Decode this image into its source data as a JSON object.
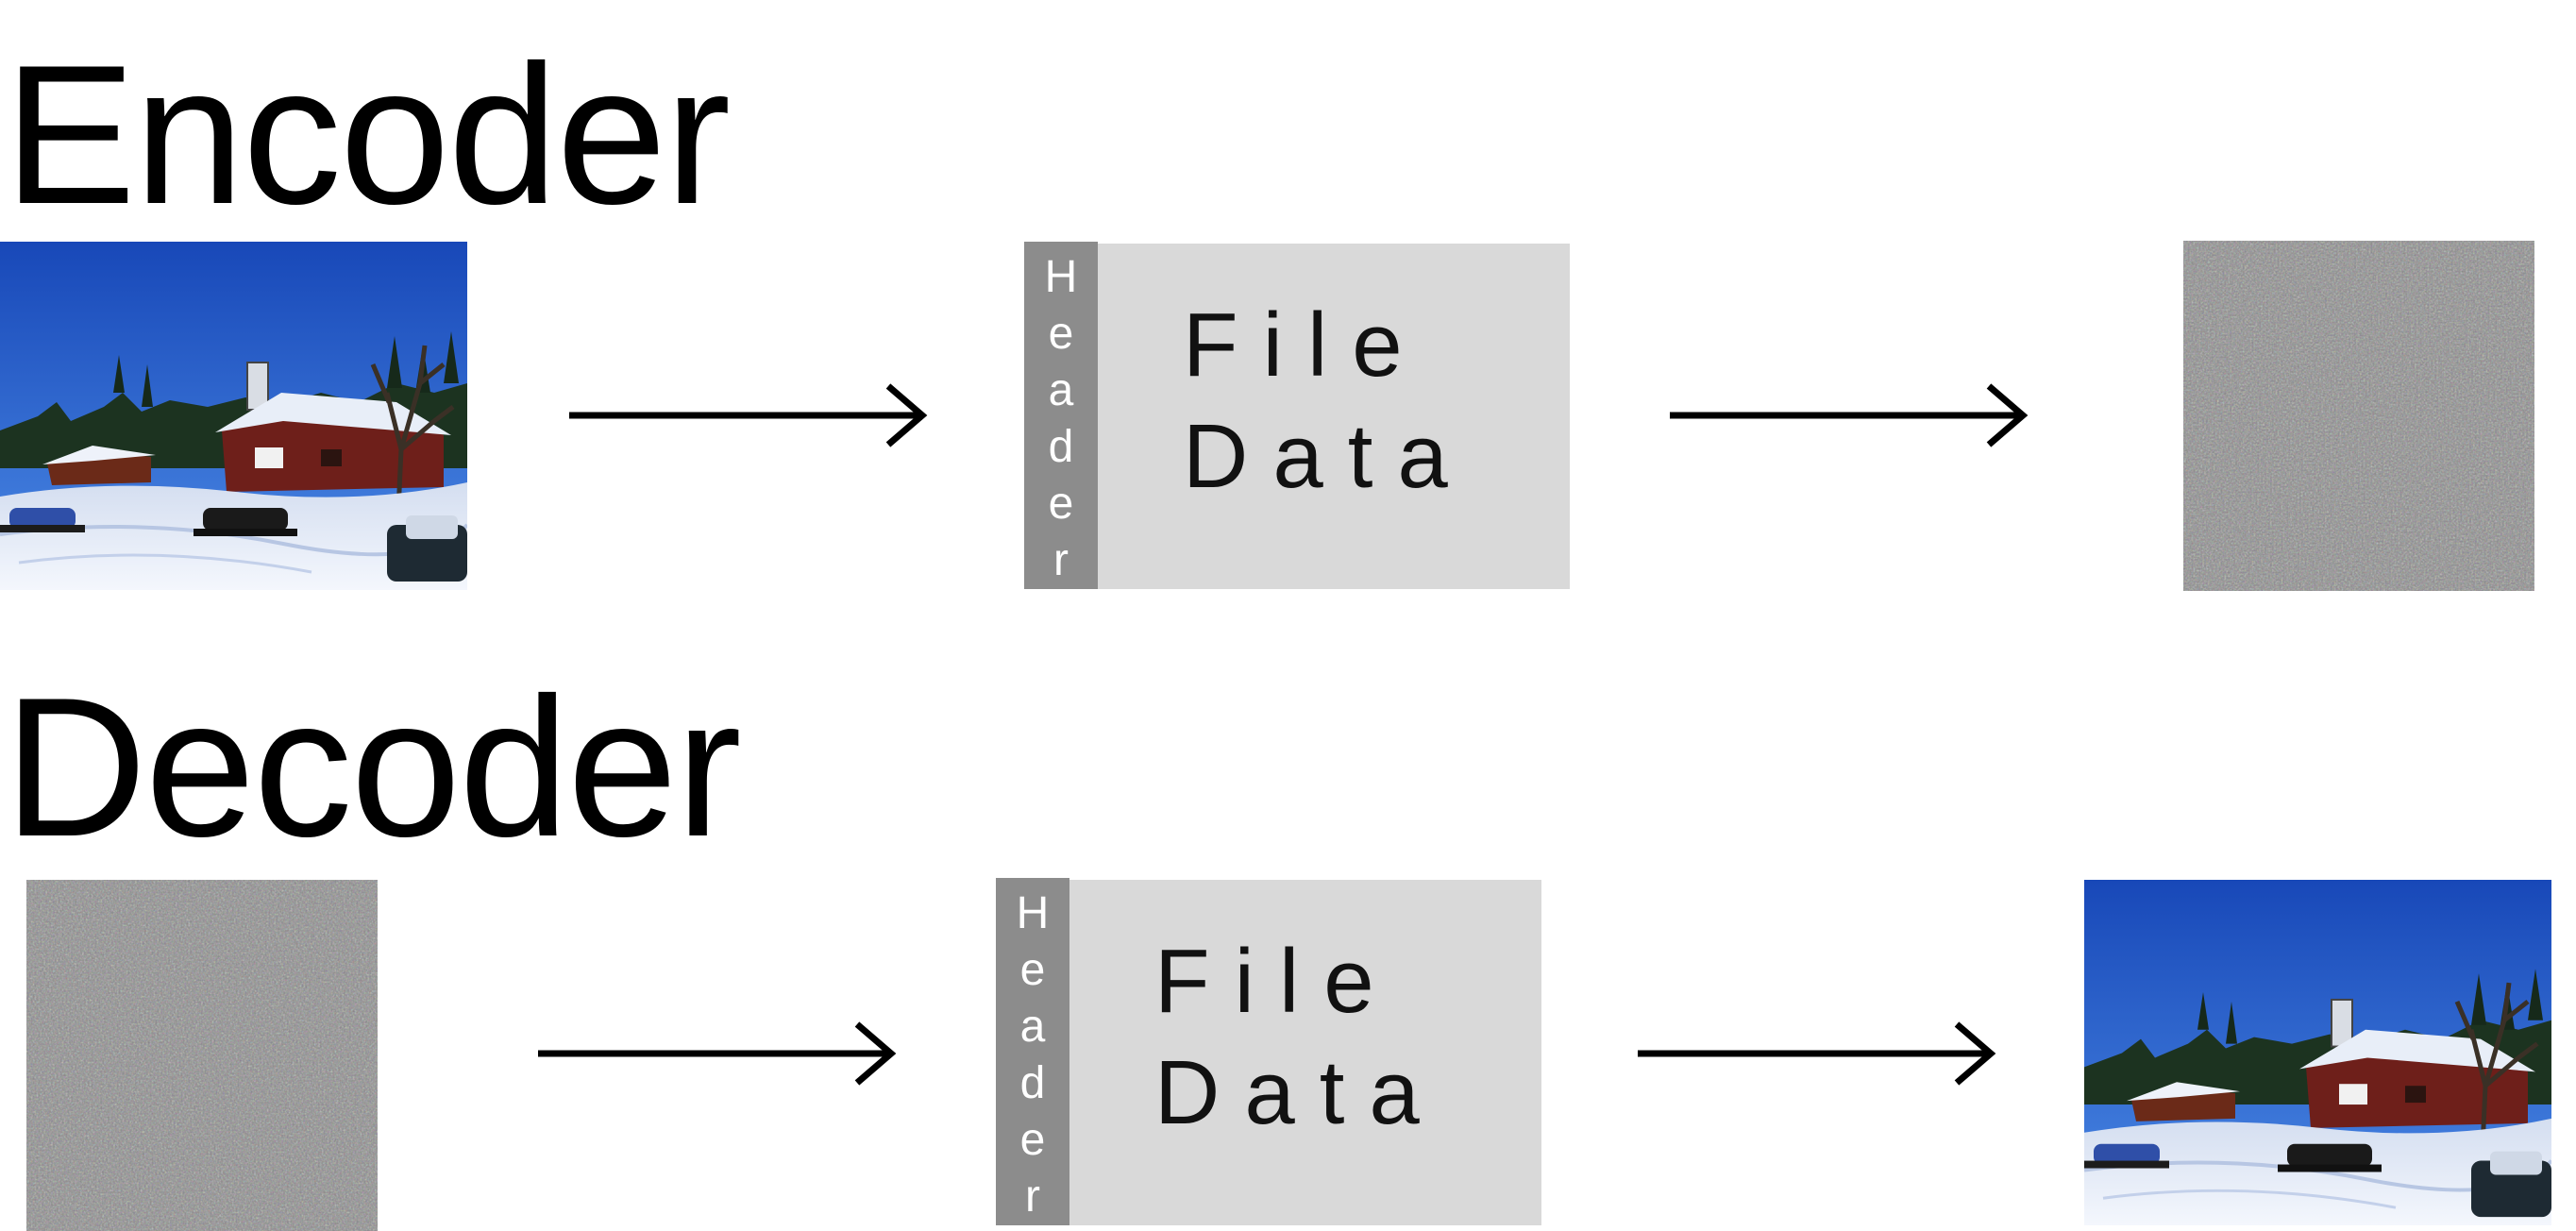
{
  "encoder": {
    "title": "Encoder",
    "input_image": "photo of snowy cabin landscape",
    "packet": {
      "header_label": "Header",
      "data_line1": "File",
      "data_line2": "Data"
    },
    "output_image": "encrypted noise image"
  },
  "decoder": {
    "title": "Decoder",
    "input_image": "encrypted noise image",
    "packet": {
      "header_label": "Header",
      "data_line1": "File",
      "data_line2": "Data"
    },
    "output_image": "photo of snowy cabin landscape"
  },
  "colors": {
    "header_strip": "#8c8c8c",
    "data_area": "#d9d9d9",
    "arrow": "#000000",
    "sky": "#1f5fd6",
    "snow": "#e8eef8"
  },
  "icons": {
    "arrow": "right-arrow-icon"
  }
}
